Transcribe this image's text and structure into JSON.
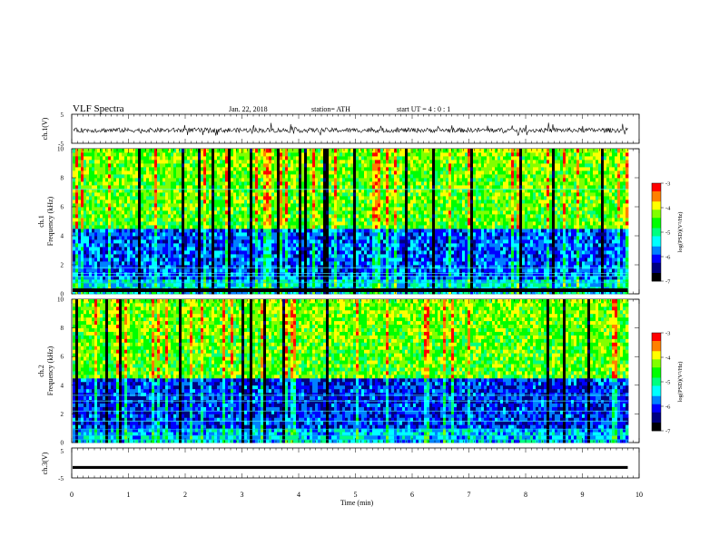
{
  "header": {
    "title": "VLF Spectra",
    "date": "Jan. 22, 2018",
    "station": "station= ATH",
    "start": "start UT = 4 : 0 : 1"
  },
  "chart_data": [
    {
      "type": "line",
      "panel": "waveform-ch1",
      "ylabel": "ch.1(V)",
      "ylim": [
        -5,
        5
      ],
      "yticks": [
        "5",
        "-5"
      ],
      "xlim": [
        0,
        10
      ],
      "series": [
        {
          "values": "noisy trace centred near -0.5 V with spikes to about ±2.5 V"
        }
      ],
      "data_end_min": 9.8
    },
    {
      "type": "heatmap",
      "panel": "spectrogram-ch1",
      "ylabel_line1": "ch.1",
      "ylabel_line2": "Frequency (kHz)",
      "ylim": [
        0,
        10
      ],
      "yticks": [
        "0",
        "2",
        "4",
        "6",
        "8",
        "10"
      ],
      "xlim": [
        0,
        10
      ],
      "data_end_min": 9.8,
      "colorbar": {
        "label": "log(PSD)(V²/Hz)",
        "range": [
          -7,
          -3
        ],
        "ticks": [
          "-3",
          "-4",
          "-5",
          "-6",
          "-7"
        ]
      }
    },
    {
      "type": "heatmap",
      "panel": "spectrogram-ch2",
      "ylabel_line1": "ch.2",
      "ylabel_line2": "Frequency (kHz)",
      "ylim": [
        0,
        10
      ],
      "yticks": [
        "0",
        "2",
        "4",
        "6",
        "8",
        "10"
      ],
      "xlim": [
        0,
        10
      ],
      "data_end_min": 9.8,
      "colorbar": {
        "label": "log(PSD)(V²/Hz)",
        "range": [
          -7,
          -3
        ],
        "ticks": [
          "-3",
          "-4",
          "-5",
          "-6",
          "-7"
        ]
      }
    },
    {
      "type": "line",
      "panel": "waveform-ch3",
      "ylabel": "ch.3(V)",
      "ylim": [
        -5,
        5
      ],
      "yticks": [
        "5",
        "-5"
      ],
      "xlim": [
        0,
        10
      ],
      "series": [
        {
          "values": "flat trace at about -1.5 V"
        }
      ],
      "data_end_min": 9.8
    }
  ],
  "xaxis": {
    "label": "Time (min)",
    "ticks": [
      "0",
      "1",
      "2",
      "3",
      "4",
      "5",
      "6",
      "7",
      "8",
      "9",
      "10"
    ]
  },
  "colors": {
    "colormap": [
      "#000000",
      "#00007f",
      "#0000ff",
      "#0080ff",
      "#00ffff",
      "#00ff80",
      "#00ff00",
      "#80ff00",
      "#ffff00",
      "#ff8000",
      "#ff0000",
      "#ffffff"
    ]
  }
}
